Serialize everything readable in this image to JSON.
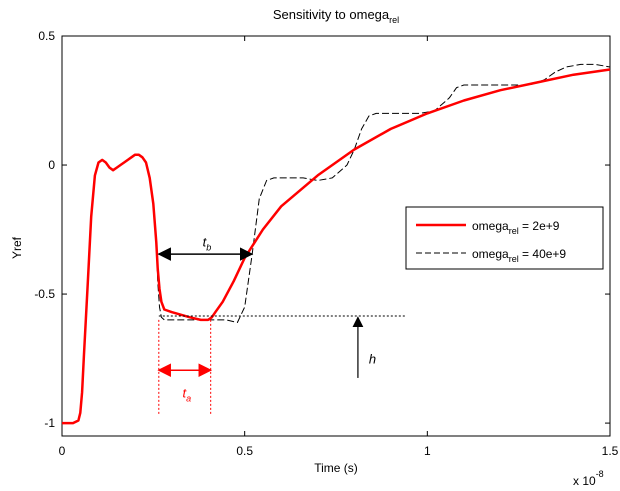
{
  "chart_data": {
    "type": "line",
    "title": {
      "main": "Sensitivity to omega",
      "sub": "rel"
    },
    "xlabel": "Time (s)",
    "ylabel": "Yref",
    "x_multiplier": {
      "base": "x 10",
      "exp": "-8"
    },
    "xlim": [
      0,
      1.5
    ],
    "ylim": [
      -1.05,
      0.5
    ],
    "xticks": [
      0,
      0.5,
      1,
      1.5
    ],
    "xtick_labels": [
      "0",
      "0.5",
      "1",
      "1.5"
    ],
    "yticks": [
      -1,
      -0.5,
      0,
      0.5
    ],
    "ytick_labels": [
      "-1",
      "-0.5",
      "0",
      "0.5"
    ],
    "grid": false,
    "legend": {
      "position": "right-middle",
      "entries": [
        {
          "pre": "omega",
          "sub": "rel",
          "post": " = 2e+9",
          "color": "#ff0000",
          "style": "solid"
        },
        {
          "pre": "omega",
          "sub": "rel",
          "post": " = 40e+9",
          "color": "#000000",
          "style": "dashed"
        }
      ]
    },
    "series": [
      {
        "color": "#ff0000",
        "style": "solid",
        "x": [
          0,
          0.03,
          0.045,
          0.05,
          0.055,
          0.06,
          0.07,
          0.08,
          0.09,
          0.1,
          0.11,
          0.12,
          0.13,
          0.14,
          0.15,
          0.16,
          0.17,
          0.18,
          0.19,
          0.2,
          0.21,
          0.22,
          0.23,
          0.24,
          0.25,
          0.258,
          0.262,
          0.267,
          0.272,
          0.28,
          0.3,
          0.35,
          0.38,
          0.4,
          0.41,
          0.42,
          0.44,
          0.47,
          0.5,
          0.55,
          0.6,
          0.7,
          0.8,
          0.9,
          1.0,
          1.1,
          1.2,
          1.3,
          1.4,
          1.5
        ],
        "y": [
          -1.0,
          -1.0,
          -0.99,
          -0.96,
          -0.88,
          -0.74,
          -0.47,
          -0.2,
          -0.04,
          0.01,
          0.02,
          0.01,
          -0.01,
          -0.02,
          -0.01,
          0.0,
          0.01,
          0.02,
          0.03,
          0.04,
          0.04,
          0.03,
          0.01,
          -0.05,
          -0.15,
          -0.3,
          -0.4,
          -0.48,
          -0.53,
          -0.56,
          -0.57,
          -0.59,
          -0.6,
          -0.6,
          -0.59,
          -0.57,
          -0.53,
          -0.45,
          -0.36,
          -0.25,
          -0.16,
          -0.04,
          0.06,
          0.14,
          0.2,
          0.25,
          0.29,
          0.32,
          0.35,
          0.37
        ]
      },
      {
        "color": "#000000",
        "style": "dashed",
        "x": [
          0,
          0.03,
          0.045,
          0.05,
          0.055,
          0.06,
          0.07,
          0.08,
          0.09,
          0.1,
          0.11,
          0.12,
          0.13,
          0.14,
          0.15,
          0.16,
          0.17,
          0.18,
          0.19,
          0.2,
          0.21,
          0.22,
          0.23,
          0.24,
          0.25,
          0.258,
          0.262,
          0.267,
          0.272,
          0.28,
          0.3,
          0.35,
          0.4,
          0.45,
          0.48,
          0.5,
          0.52,
          0.54,
          0.56,
          0.58,
          0.62,
          0.66,
          0.7,
          0.74,
          0.78,
          0.8,
          0.82,
          0.84,
          0.86,
          0.9,
          0.94,
          0.98,
          1.02,
          1.06,
          1.08,
          1.1,
          1.12,
          1.16,
          1.2,
          1.24,
          1.28,
          1.32,
          1.35,
          1.38,
          1.42,
          1.46,
          1.5
        ],
        "y": [
          -1.0,
          -1.0,
          -0.99,
          -0.96,
          -0.88,
          -0.74,
          -0.47,
          -0.2,
          -0.04,
          0.01,
          0.02,
          0.01,
          -0.01,
          -0.02,
          -0.01,
          0.0,
          0.01,
          0.02,
          0.03,
          0.04,
          0.04,
          0.03,
          0.01,
          -0.05,
          -0.15,
          -0.3,
          -0.45,
          -0.55,
          -0.59,
          -0.6,
          -0.6,
          -0.6,
          -0.6,
          -0.6,
          -0.61,
          -0.55,
          -0.35,
          -0.13,
          -0.06,
          -0.05,
          -0.05,
          -0.05,
          -0.06,
          -0.05,
          0.0,
          0.06,
          0.14,
          0.19,
          0.2,
          0.2,
          0.2,
          0.2,
          0.21,
          0.26,
          0.3,
          0.31,
          0.31,
          0.31,
          0.31,
          0.31,
          0.31,
          0.33,
          0.36,
          0.38,
          0.39,
          0.39,
          0.38
        ]
      }
    ],
    "annotations": {
      "ta": {
        "letter": "t",
        "sub": "a",
        "x1": 0.265,
        "x2": 0.407,
        "y": -0.795,
        "label_x": 0.33,
        "label_y": -0.9
      },
      "tb": {
        "letter": "t",
        "sub": "b",
        "x1": 0.265,
        "x2": 0.52,
        "y": -0.345,
        "label_x": 0.385,
        "label_y": -0.315
      },
      "vlines": [
        {
          "x": 0.265,
          "y1": -0.6,
          "y2": -0.965
        },
        {
          "x": 0.407,
          "y1": -0.6,
          "y2": -0.965
        }
      ],
      "hline": {
        "x1": 0.265,
        "x2": 0.94,
        "y": -0.585
      },
      "h": {
        "letter": "h",
        "x": 0.81,
        "y1": -0.59,
        "y2": -0.825,
        "label_x": 0.84,
        "label_y": -0.77
      }
    }
  }
}
